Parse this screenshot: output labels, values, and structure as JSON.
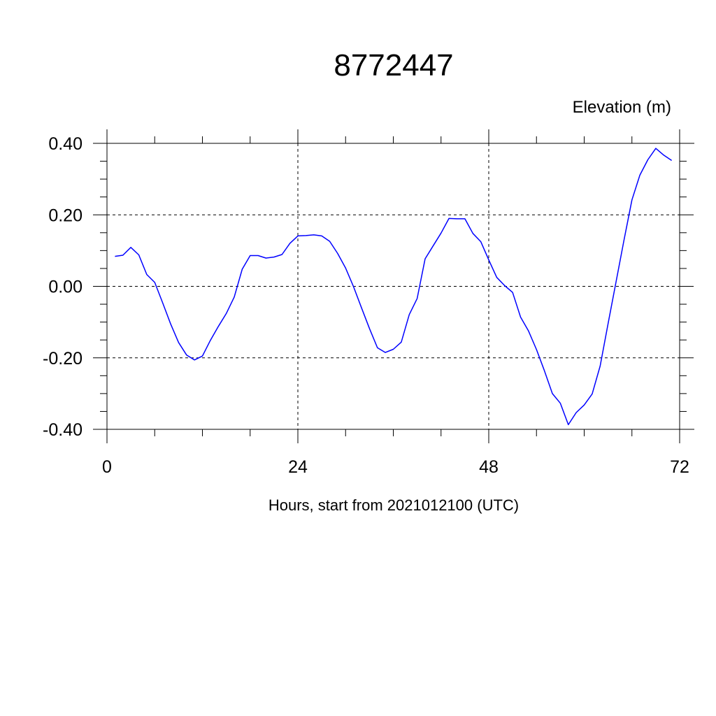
{
  "chart_data": {
    "type": "line",
    "title": "8772447",
    "subtitle": "Elevation (m)",
    "xlabel": "Hours, start from 2021012100 (UTC)",
    "ylabel": "",
    "xlim": [
      0,
      72
    ],
    "ylim": [
      -0.4,
      0.4
    ],
    "x_ticks": [
      0,
      24,
      48,
      72
    ],
    "x_tick_labels": [
      "0",
      "24",
      "48",
      "72"
    ],
    "y_ticks": [
      0.4,
      0.2,
      0.0,
      -0.2,
      -0.4
    ],
    "y_tick_labels": [
      "0.40",
      "0.20",
      "0.00",
      "-0.20",
      "-0.40"
    ],
    "grid": true,
    "series": [
      {
        "color": "#0000ff",
        "x": [
          1,
          2,
          3,
          4,
          5,
          6,
          7,
          8,
          9,
          10,
          11,
          12,
          13,
          14,
          15,
          16,
          17,
          18,
          19,
          20,
          21,
          22,
          23,
          24,
          25,
          26,
          27,
          28,
          29,
          30,
          31,
          32,
          33,
          34,
          35,
          36,
          37,
          38,
          39,
          40,
          41,
          42,
          43,
          44,
          45,
          46,
          47,
          48,
          49,
          50,
          51,
          52,
          53,
          54,
          55,
          56,
          57,
          58,
          59,
          60,
          61,
          62,
          63,
          64,
          65,
          66,
          67,
          68,
          69,
          70,
          71
        ],
        "y": [
          0.084,
          0.087,
          0.109,
          0.088,
          0.033,
          0.011,
          -0.046,
          -0.105,
          -0.157,
          -0.192,
          -0.206,
          -0.195,
          -0.151,
          -0.112,
          -0.076,
          -0.03,
          0.048,
          0.086,
          0.086,
          0.079,
          0.082,
          0.089,
          0.12,
          0.141,
          0.142,
          0.144,
          0.141,
          0.126,
          0.092,
          0.051,
          -0.001,
          -0.06,
          -0.118,
          -0.172,
          -0.185,
          -0.176,
          -0.156,
          -0.079,
          -0.034,
          0.077,
          0.113,
          0.149,
          0.19,
          0.189,
          0.189,
          0.148,
          0.125,
          0.074,
          0.025,
          0.002,
          -0.017,
          -0.086,
          -0.125,
          -0.177,
          -0.236,
          -0.3,
          -0.327,
          -0.387,
          -0.353,
          -0.332,
          -0.301,
          -0.223,
          -0.105,
          0.012,
          0.129,
          0.242,
          0.311,
          0.354,
          0.386,
          0.367,
          0.352
        ]
      }
    ]
  }
}
